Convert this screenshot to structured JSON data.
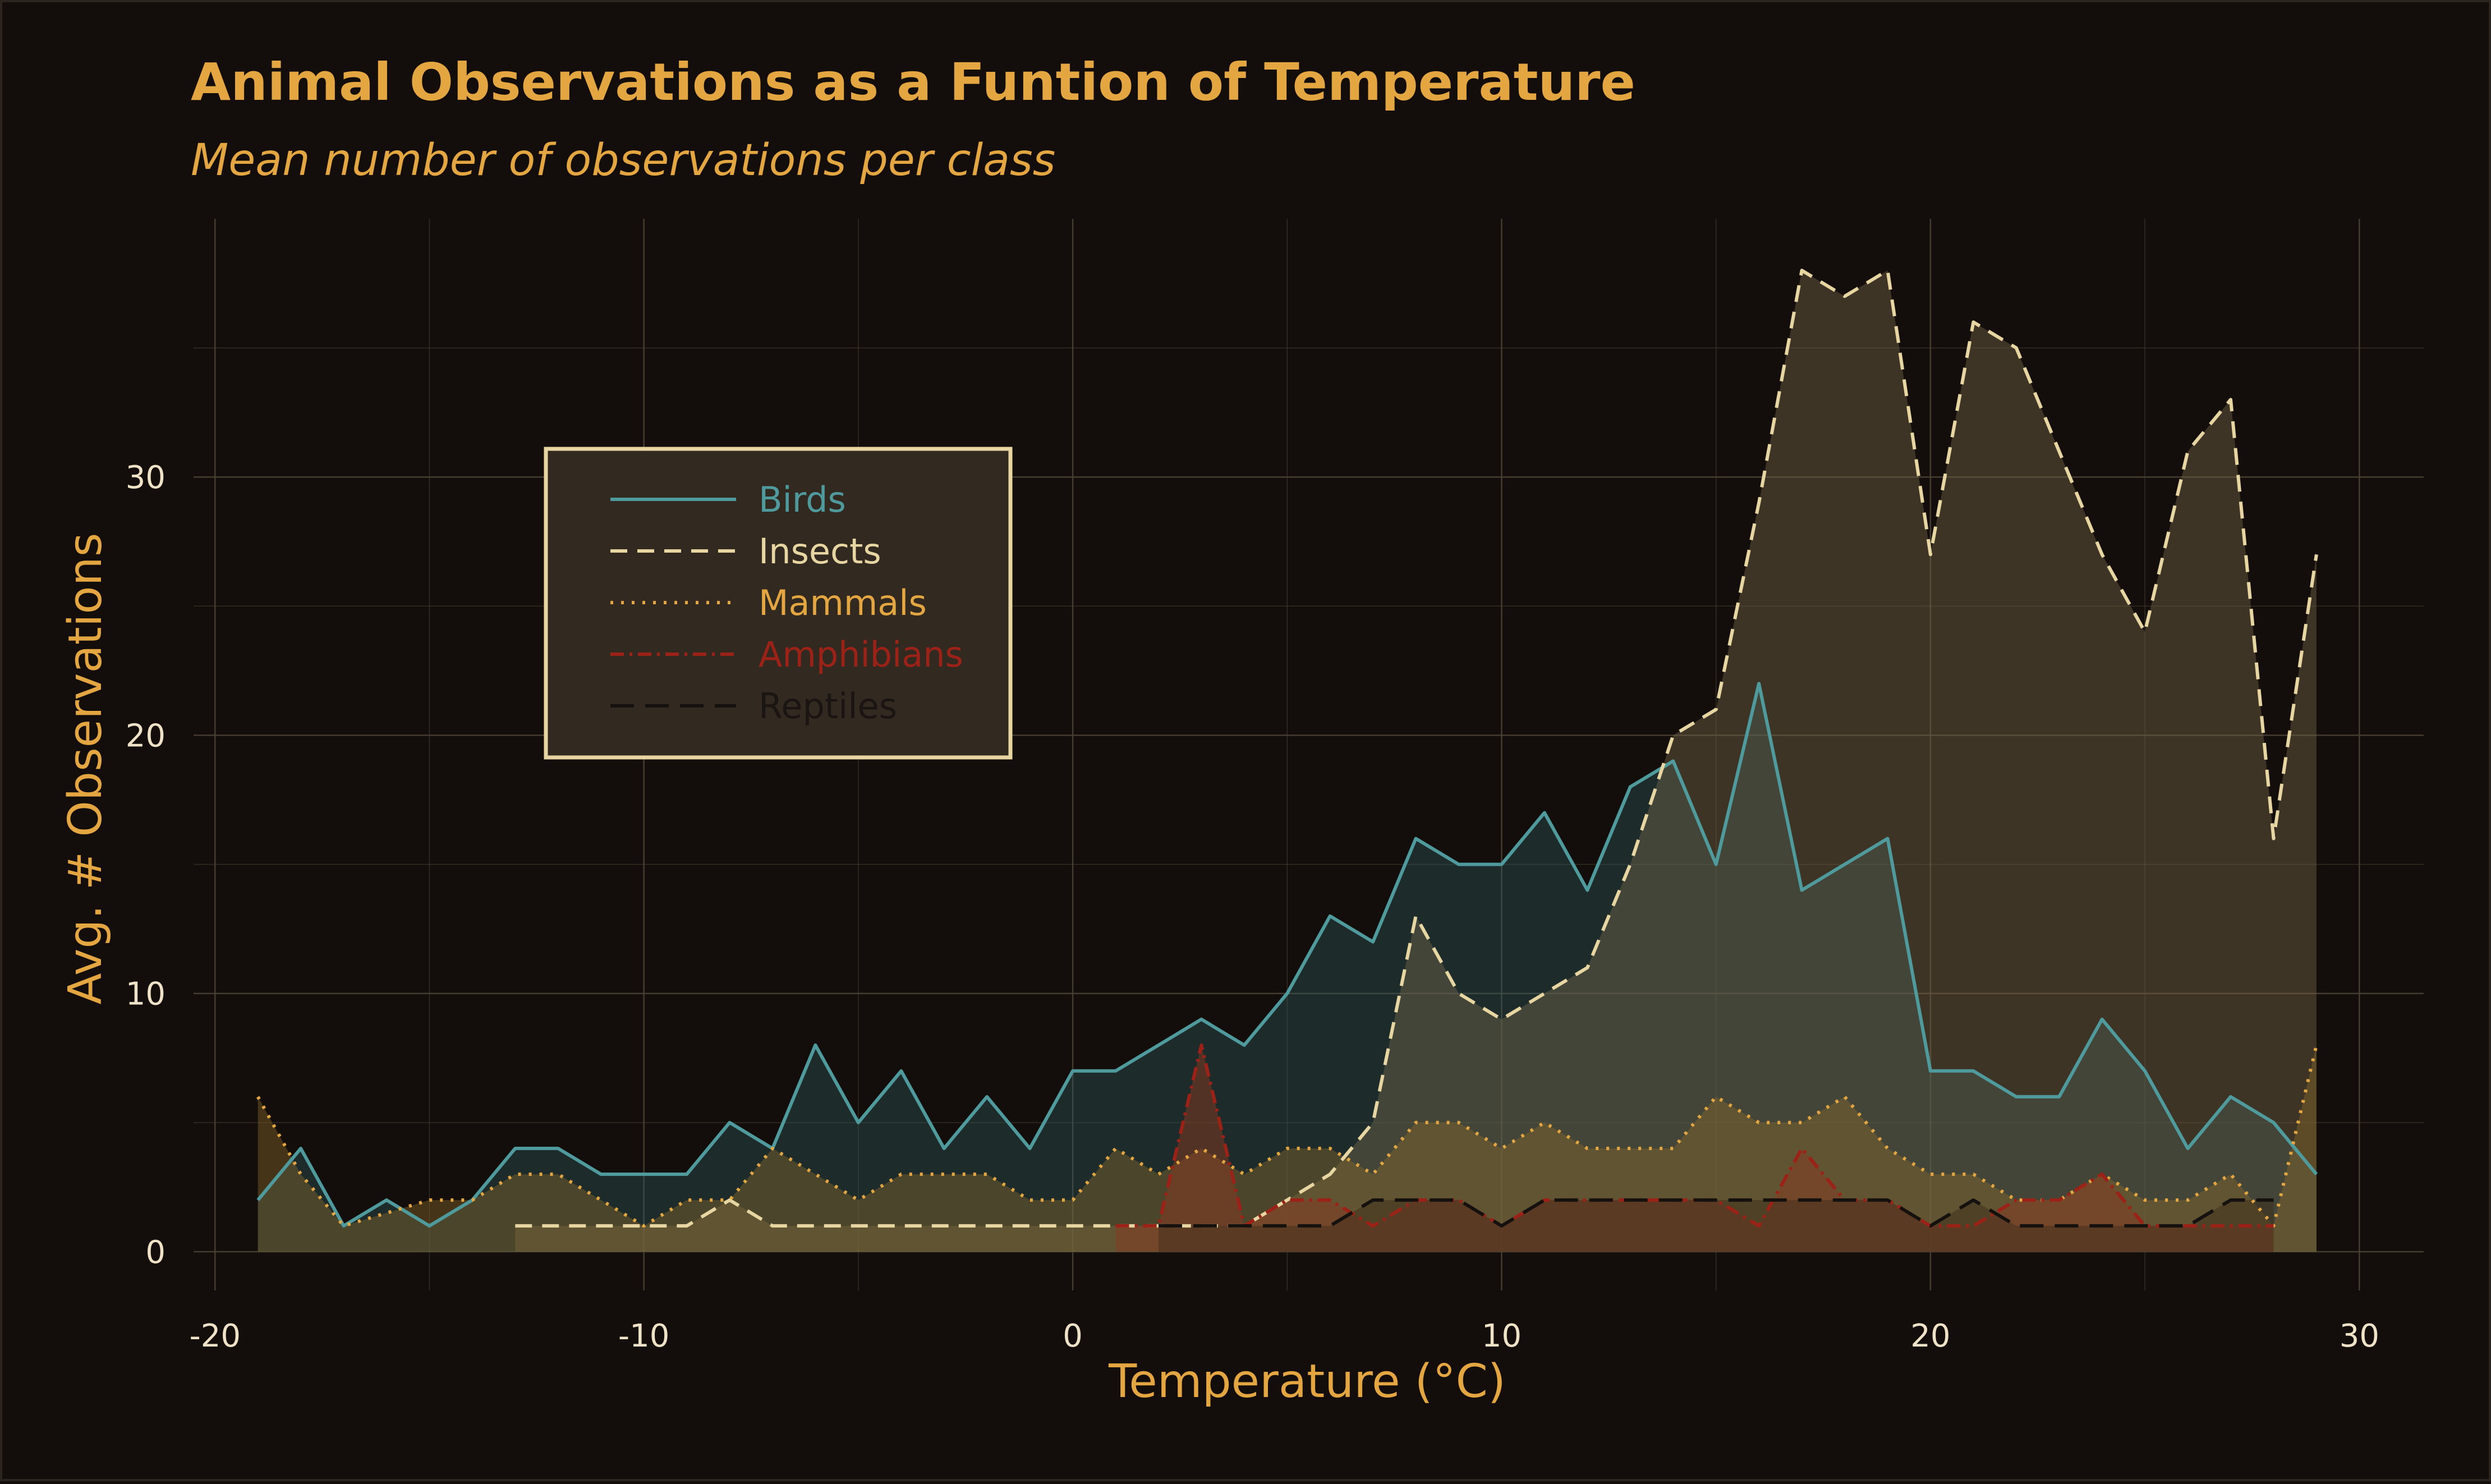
{
  "colors": {
    "background": "#130e0c",
    "panel_border": "#2b241f",
    "grid": "#4a4133",
    "title": "#e3a641",
    "tick_text": "#efe2c6",
    "legend_bg": "#322920",
    "legend_border": "#e7d6a1",
    "reptiles_legend_text": "#1a1512"
  },
  "chart_data": {
    "type": "area",
    "title": "Animal Observations as a Funtion of Temperature",
    "subtitle": "Mean number of observations per class",
    "xlabel": "Temperature (°C)",
    "ylabel": "Avg. # Observations",
    "xlim": [
      -20.5,
      31.5
    ],
    "ylim": [
      -1.5,
      40
    ],
    "xticks": [
      -20,
      -10,
      0,
      10,
      20,
      30
    ],
    "xtick_labels": [
      "-20",
      "-10",
      "0",
      "10",
      "20",
      "30"
    ],
    "yticks": [
      0,
      10,
      20,
      30
    ],
    "ytick_labels": [
      "0",
      "10",
      "20",
      "30"
    ],
    "grid": true,
    "legend_position": "upper-left (inside plot)",
    "series": [
      {
        "name": "Birds",
        "color": "#4f9a9c",
        "fill": "#2f5b5e",
        "fill_opacity": 0.38,
        "dash": "",
        "x": [
          -19,
          -18,
          -17,
          -16,
          -15,
          -14,
          -13,
          -12,
          -11,
          -10,
          -9,
          -8,
          -7,
          -6,
          -5,
          -4,
          -3,
          -2,
          -1,
          0,
          1,
          2,
          3,
          4,
          5,
          6,
          7,
          8,
          9,
          10,
          11,
          12,
          13,
          14,
          15,
          16,
          17,
          18,
          19,
          20,
          21,
          22,
          23,
          24,
          25,
          26,
          27,
          28,
          29
        ],
        "values": [
          2,
          4,
          1,
          2,
          1,
          2,
          4,
          4,
          3,
          3,
          3,
          5,
          4,
          8,
          5,
          7,
          4,
          6,
          4,
          7,
          7,
          8,
          9,
          8,
          10,
          13,
          12,
          16,
          15,
          15,
          17,
          14,
          18,
          19,
          15,
          22,
          14,
          15,
          16,
          7,
          7,
          6,
          6,
          9,
          7,
          4,
          6,
          5,
          3
        ]
      },
      {
        "name": "Insects",
        "color": "#e7d6a1",
        "fill": "#786a4a",
        "fill_opacity": 0.42,
        "dash": "30,18",
        "x": [
          -13,
          -12,
          -11,
          -10,
          -9,
          -8,
          -7,
          -6,
          -5,
          -4,
          -3,
          -2,
          -1,
          0,
          1,
          2,
          3,
          4,
          5,
          6,
          7,
          8,
          9,
          10,
          11,
          12,
          13,
          14,
          15,
          16,
          17,
          18,
          19,
          20,
          21,
          22,
          23,
          24,
          25,
          26,
          27,
          28,
          29
        ],
        "values": [
          1,
          1,
          1,
          1,
          1,
          2,
          1,
          1,
          1,
          1,
          1,
          1,
          1,
          1,
          1,
          1,
          1,
          1,
          2,
          3,
          5,
          13,
          10,
          9,
          10,
          11,
          15,
          20,
          21,
          29,
          38,
          37,
          38,
          27,
          36,
          35,
          31,
          27,
          24,
          31,
          33,
          16,
          27
        ]
      },
      {
        "name": "Mammals",
        "color": "#e3a641",
        "fill": "#8a6a2a",
        "fill_opacity": 0.42,
        "dash": "5,14",
        "x": [
          -19,
          -18,
          -17,
          -16,
          -15,
          -14,
          -13,
          -12,
          -11,
          -10,
          -9,
          -8,
          -7,
          -6,
          -5,
          -4,
          -3,
          -2,
          -1,
          0,
          1,
          2,
          3,
          4,
          5,
          6,
          7,
          8,
          9,
          10,
          11,
          12,
          13,
          14,
          15,
          16,
          17,
          18,
          19,
          20,
          21,
          22,
          23,
          24,
          25,
          26,
          27,
          28,
          29
        ],
        "values": [
          6,
          3,
          1,
          1.5,
          2,
          2,
          3,
          3,
          2,
          1,
          2,
          2,
          4,
          3,
          2,
          3,
          3,
          3,
          2,
          2,
          4,
          3,
          4,
          3,
          4,
          4,
          3,
          5,
          5,
          4,
          5,
          4,
          4,
          4,
          6,
          5,
          5,
          6,
          4,
          3,
          3,
          2,
          2,
          3,
          2,
          2,
          3,
          1,
          8
        ]
      },
      {
        "name": "Amphibians",
        "color": "#9c2218",
        "fill": "#8a3a22",
        "fill_opacity": 0.5,
        "dash": "24,10,5,10",
        "x": [
          1,
          2,
          3,
          4,
          5,
          6,
          7,
          8,
          9,
          10,
          11,
          12,
          13,
          14,
          15,
          16,
          17,
          18,
          19,
          20,
          21,
          22,
          23,
          24,
          25,
          26,
          27,
          28
        ],
        "values": [
          1,
          1,
          8,
          1,
          2,
          2,
          1,
          2,
          2,
          1,
          2,
          2,
          2,
          2,
          2,
          1,
          4,
          2,
          2,
          1,
          1,
          2,
          2,
          3,
          1,
          1,
          1,
          1
        ]
      },
      {
        "name": "Reptiles",
        "color": "#15110f",
        "fill": "#3a2a18",
        "fill_opacity": 0.45,
        "dash": "42,20",
        "x": [
          2,
          3,
          4,
          5,
          6,
          7,
          8,
          9,
          10,
          11,
          12,
          13,
          14,
          15,
          16,
          17,
          18,
          19,
          20,
          21,
          22,
          23,
          24,
          25,
          26,
          27,
          28
        ],
        "values": [
          1,
          1,
          1,
          1,
          1,
          2,
          2,
          2,
          1,
          2,
          2,
          2,
          2,
          2,
          2,
          2,
          2,
          2,
          1,
          2,
          1,
          1,
          1,
          1,
          1,
          2,
          2
        ]
      }
    ]
  }
}
